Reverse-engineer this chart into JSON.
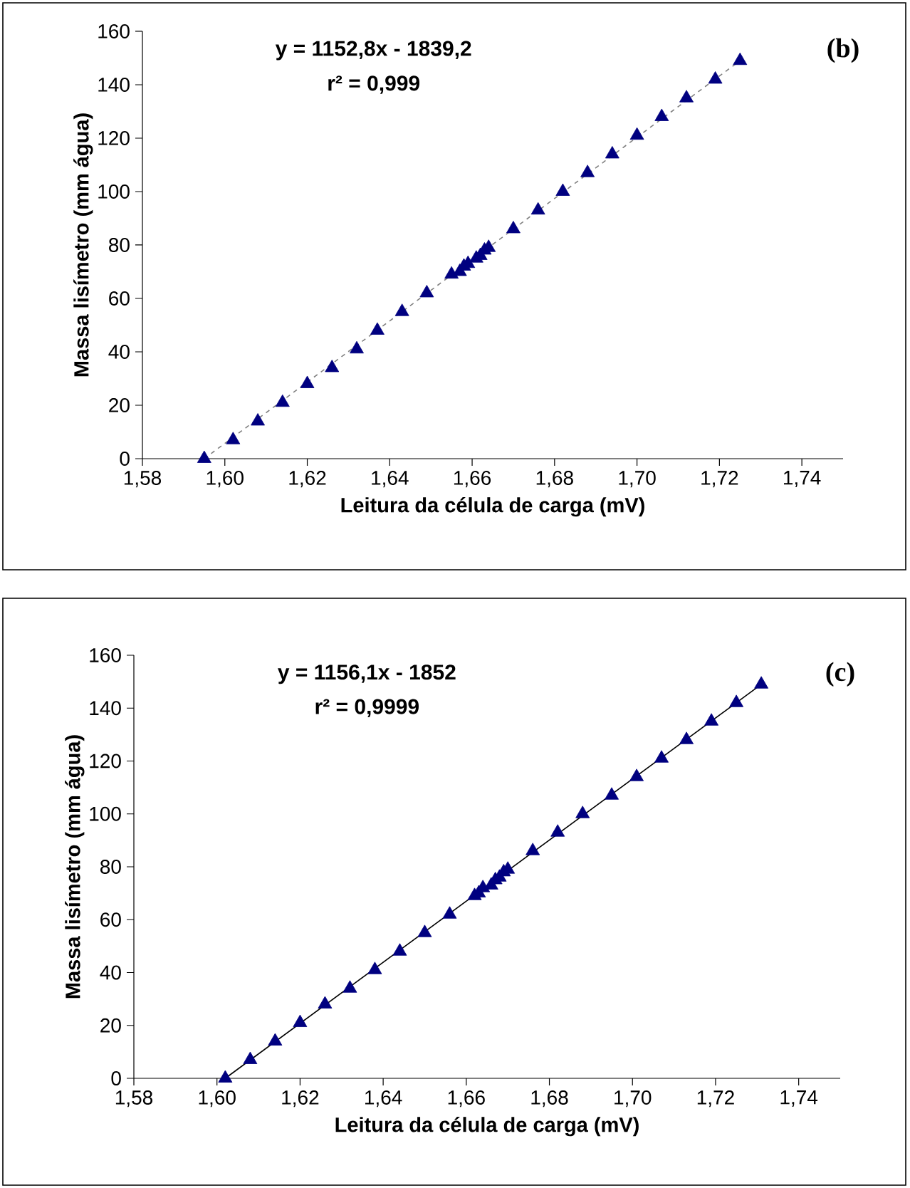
{
  "chart_data": [
    {
      "type": "scatter",
      "xlabel": "Leitura da célula de carga (mV)",
      "ylabel": "Massa lisímetro (mm  água)",
      "xlim": [
        1.58,
        1.75
      ],
      "ylim": [
        0,
        160
      ],
      "xticks": [
        {
          "value": 1.58,
          "label": "1,58"
        },
        {
          "value": 1.6,
          "label": "1,60"
        },
        {
          "value": 1.62,
          "label": "1,62"
        },
        {
          "value": 1.64,
          "label": "1,64"
        },
        {
          "value": 1.66,
          "label": "1,66"
        },
        {
          "value": 1.68,
          "label": "1,68"
        },
        {
          "value": 1.7,
          "label": "1,70"
        },
        {
          "value": 1.72,
          "label": "1,72"
        },
        {
          "value": 1.74,
          "label": "1,74"
        }
      ],
      "yticks": [
        0,
        20,
        40,
        60,
        80,
        100,
        120,
        140,
        160
      ],
      "annotations": [
        "y = 1152,8x - 1839,2",
        "r² = 0,999",
        "(b)"
      ],
      "series": [
        {
          "type": "scatter",
          "color": "#000080",
          "marker": "triangle",
          "x": [
            1.595,
            1.602,
            1.608,
            1.614,
            1.62,
            1.626,
            1.632,
            1.637,
            1.643,
            1.649,
            1.655,
            1.657,
            1.658,
            1.659,
            1.661,
            1.662,
            1.663,
            1.664,
            1.67,
            1.676,
            1.682,
            1.688,
            1.694,
            1.7,
            1.706,
            1.712,
            1.719,
            1.725
          ],
          "values": [
            0,
            7,
            14,
            21,
            28,
            34,
            41,
            48,
            55,
            62,
            69,
            70,
            72,
            73,
            75,
            76,
            78,
            79,
            86,
            93,
            100,
            107,
            114,
            121,
            128,
            135,
            142,
            149
          ]
        },
        {
          "type": "line",
          "color": "#808080",
          "line_style": "dashed",
          "x": [
            1.595,
            1.725
          ],
          "values": [
            0,
            149
          ]
        }
      ]
    },
    {
      "type": "scatter",
      "xlabel": "Leitura da célula de carga (mV)",
      "ylabel": "Massa lisímetro (mm água)",
      "xlim": [
        1.58,
        1.75
      ],
      "ylim": [
        0,
        160
      ],
      "xticks": [
        {
          "value": 1.58,
          "label": "1,58"
        },
        {
          "value": 1.6,
          "label": "1,60"
        },
        {
          "value": 1.62,
          "label": "1,62"
        },
        {
          "value": 1.64,
          "label": "1,64"
        },
        {
          "value": 1.66,
          "label": "1,66"
        },
        {
          "value": 1.68,
          "label": "1,68"
        },
        {
          "value": 1.7,
          "label": "1,70"
        },
        {
          "value": 1.72,
          "label": "1,72"
        },
        {
          "value": 1.74,
          "label": "1,74"
        }
      ],
      "yticks": [
        0,
        20,
        40,
        60,
        80,
        100,
        120,
        140,
        160
      ],
      "annotations": [
        "y = 1156,1x - 1852",
        "r² = 0,9999",
        "(c)"
      ],
      "series": [
        {
          "type": "scatter",
          "color": "#000080",
          "marker": "triangle",
          "x": [
            1.602,
            1.608,
            1.614,
            1.62,
            1.626,
            1.632,
            1.638,
            1.644,
            1.65,
            1.656,
            1.662,
            1.663,
            1.664,
            1.666,
            1.667,
            1.668,
            1.669,
            1.67,
            1.676,
            1.682,
            1.688,
            1.695,
            1.701,
            1.707,
            1.713,
            1.719,
            1.725,
            1.731
          ],
          "values": [
            0,
            7,
            14,
            21,
            28,
            34,
            41,
            48,
            55,
            62,
            69,
            70,
            72,
            73,
            75,
            76,
            78,
            79,
            86,
            93,
            100,
            107,
            114,
            121,
            128,
            135,
            142,
            149
          ]
        },
        {
          "type": "line",
          "color": "#000000",
          "line_style": "solid",
          "x": [
            1.602,
            1.731
          ],
          "values": [
            0,
            149
          ]
        }
      ]
    }
  ]
}
